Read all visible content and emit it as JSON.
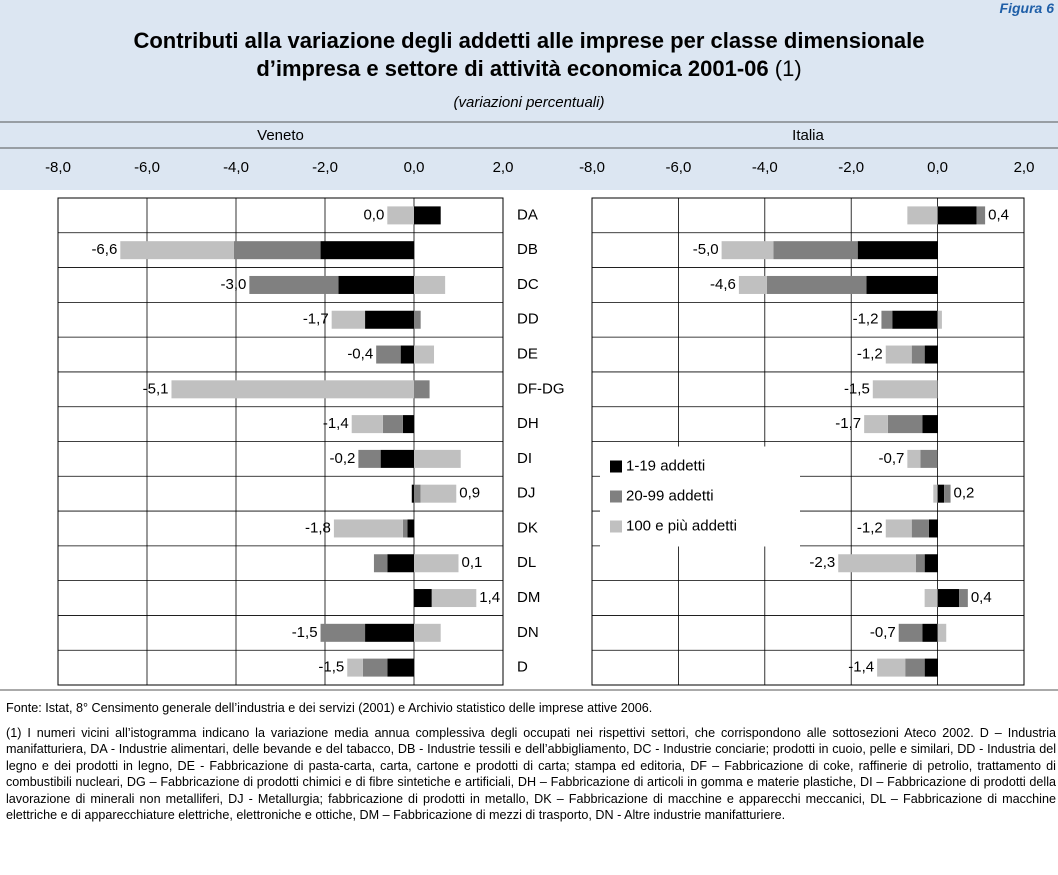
{
  "figure_label": "Figura 6",
  "title_line1": "Contributi alla variazione degli addetti alle imprese per classe dimensionale",
  "title_line2": "d’impresa e settore di attività economica 2001-06",
  "title_note": "(1)",
  "subtitle": "(variazioni percentuali)",
  "chart_data": [
    {
      "type": "bar",
      "orientation": "horizontal",
      "stacked": true,
      "title": "Veneto",
      "categories": [
        "DA",
        "DB",
        "DC",
        "DD",
        "DE",
        "DF-DG",
        "DH",
        "DI",
        "DJ",
        "DK",
        "DL",
        "DM",
        "DN",
        "D"
      ],
      "xlim": [
        -8,
        2
      ],
      "xticks": [
        {
          "value": -8,
          "label": "-8,0"
        },
        {
          "value": -6,
          "label": "-6,0"
        },
        {
          "value": -4,
          "label": "-4,0"
        },
        {
          "value": -2,
          "label": "-2,0"
        },
        {
          "value": 0,
          "label": "0,0"
        },
        {
          "value": 2,
          "label": "2,0"
        }
      ],
      "grid": true,
      "series": [
        {
          "color": "#000000",
          "values": [
            0.6,
            -2.1,
            -1.7,
            -1.1,
            -0.3,
            0,
            -0.25,
            -0.75,
            -0.05,
            -0.15,
            -0.6,
            0.4,
            -1.1,
            -0.6
          ]
        },
        {
          "color": "#808080",
          "values": [
            0,
            -1.95,
            -2.0,
            0.15,
            -0.55,
            0.35,
            -0.45,
            -0.5,
            0.15,
            -0.1,
            -0.3,
            0,
            -1.0,
            -0.55
          ]
        },
        {
          "color": "#c0c0c0",
          "values": [
            -0.6,
            -2.55,
            0.7,
            -0.75,
            0.45,
            -5.45,
            -0.7,
            1.05,
            0.8,
            -1.55,
            1.0,
            1.0,
            0.6,
            -0.35
          ]
        }
      ],
      "totals": [
        0,
        -6.6,
        -3,
        -1.7,
        -0.4,
        -5.1,
        -1.4,
        -0.2,
        0.9,
        -1.8,
        0.1,
        1.4,
        -1.5,
        -1.5
      ],
      "total_labels": [
        "0,0",
        "-6,6",
        "-3,0",
        "-1,7",
        "-0,4",
        "-5,1",
        "-1,4",
        "-0,2",
        "0,9",
        "-1,8",
        "0,1",
        "1,4",
        "-1,5",
        "-1,5"
      ]
    },
    {
      "type": "bar",
      "orientation": "horizontal",
      "stacked": true,
      "title": "Italia",
      "xlim": [
        -8,
        2
      ],
      "xticks": [
        {
          "value": -8,
          "label": "-8,0"
        },
        {
          "value": -6,
          "label": "-6,0"
        },
        {
          "value": -4,
          "label": "-4,0"
        },
        {
          "value": -2,
          "label": "-2,0"
        },
        {
          "value": 0,
          "label": "0,0"
        },
        {
          "value": 2,
          "label": "2,0"
        }
      ],
      "grid": true,
      "series": [
        {
          "name": "1-19 addetti",
          "color": "#000000",
          "values": [
            0.9,
            -1.85,
            -1.65,
            -1.05,
            -0.3,
            0,
            -0.35,
            0,
            0.15,
            -0.2,
            -0.3,
            0.5,
            -0.35,
            -0.3
          ]
        },
        {
          "name": "20-99 addetti",
          "color": "#808080",
          "values": [
            0.2,
            -1.95,
            -2.3,
            -0.25,
            -0.3,
            0,
            -0.8,
            -0.4,
            0.15,
            -0.4,
            -0.2,
            0.2,
            -0.55,
            -0.45
          ]
        },
        {
          "name": "100 e più addetti",
          "color": "#c0c0c0",
          "values": [
            -0.7,
            -1.2,
            -0.65,
            0.1,
            -0.6,
            -1.5,
            -0.55,
            -0.3,
            -0.1,
            -0.6,
            -1.8,
            -0.3,
            0.2,
            -0.65
          ]
        }
      ],
      "totals": [
        0.4,
        -5,
        -4.6,
        -1.2,
        -1.2,
        -1.5,
        -1.7,
        -0.7,
        0.2,
        -1.2,
        -2.3,
        0.4,
        -0.7,
        -1.4
      ],
      "total_labels": [
        "0,4",
        "-5,0",
        "-4,6",
        "-1,2",
        "-1,2",
        "-1,5",
        "-1,7",
        "-0,7",
        "0,2",
        "-1,2",
        "-2,3",
        "0,4",
        "-0,7",
        "-1,4"
      ],
      "legend": "center-left"
    }
  ],
  "source": "Fonte: Istat, 8° Censimento generale dell’industria e dei servizi (2001) e Archivio statistico delle imprese attive 2006.",
  "note": "(1) I numeri vicini all’istogramma indicano la variazione media annua complessiva degli occupati nei rispettivi settori, che corrispondono alle sottosezioni Ateco 2002. D – Industria manifatturiera, DA - Industrie alimentari, delle bevande e del tabacco, DB - Industrie tessili e dell’abbigliamento, DC - Industrie conciarie; prodotti in cuoio, pelle e similari, DD - Industria del legno e dei prodotti in legno, DE - Fabbricazione di pasta-carta, carta, cartone e prodotti di carta; stampa ed editoria, DF – Fabbricazione di coke, raffinerie di petrolio, trattamento di combustibili nucleari, DG – Fabbricazione di prodotti chimici e di fibre sintetiche e artificiali, DH – Fabbricazione di articoli in gomma e materie plastiche, DI – Fabbricazione di prodotti della lavorazione di minerali non metalliferi, DJ - Metallurgia; fabbricazione di prodotti in metallo, DK – Fabbricazione di macchine e apparecchi meccanici, DL – Fabbricazione di macchine elettriche e di apparecchiature elettriche, elettroniche e ottiche, DM – Fabbricazione di mezzi di trasporto, DN - Altre industrie manifatturiere."
}
